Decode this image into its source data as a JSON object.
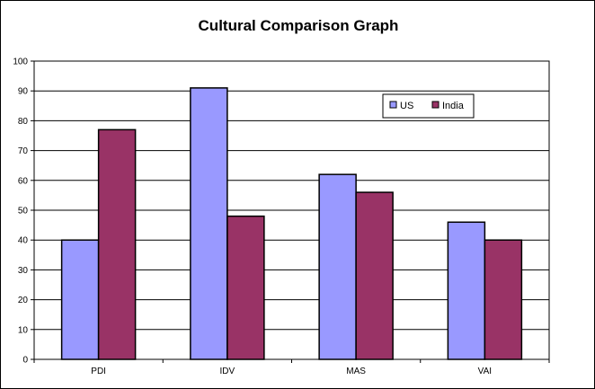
{
  "chart_data": {
    "type": "bar",
    "title": "Cultural Comparison Graph",
    "xlabel": "",
    "ylabel": "",
    "categories": [
      "PDI",
      "IDV",
      "MAS",
      "VAI"
    ],
    "series": [
      {
        "name": "US",
        "values": [
          40,
          91,
          62,
          46
        ],
        "color": "#9999ff"
      },
      {
        "name": "India",
        "values": [
          77,
          48,
          56,
          40
        ],
        "color": "#993366"
      }
    ],
    "ylim": [
      0,
      100
    ],
    "yticks": [
      0,
      10,
      20,
      30,
      40,
      50,
      60,
      70,
      80,
      90,
      100
    ],
    "grid": true,
    "legend_position": "top-right"
  }
}
